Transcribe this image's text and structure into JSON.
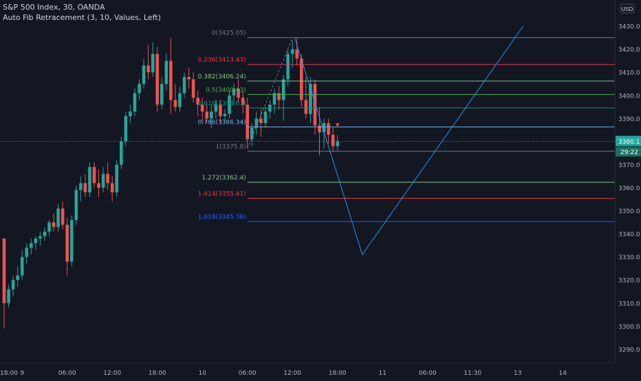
{
  "header": {
    "symbol_line": "S&P 500 Index, 30, OANDA",
    "indicator_line": "Auto Fib Retracement (3, 10, Values, Left)"
  },
  "currency_badge": "USD",
  "chart_data": {
    "type": "candlestick",
    "title": "",
    "y_axis": {
      "position": "right",
      "ylim": [
        3284,
        3436
      ],
      "ticks": [
        3430,
        3420,
        3410,
        3400,
        3390,
        3380,
        3370,
        3360,
        3350,
        3340,
        3330,
        3320,
        3310,
        3300,
        3290
      ],
      "tick_labels": [
        "3430.0",
        "3420.0",
        "3410.0",
        "3400.0",
        "3390.0",
        "",
        "3370.0",
        "3360.0",
        "3350.0",
        "3340.0",
        "3330.0",
        "3320.0",
        "3310.0",
        "3300.0",
        "3290.0"
      ]
    },
    "x_axis": {
      "tick_labels": [
        "18:00",
        "9",
        "06:00",
        "12:00",
        "18:00",
        "10",
        "06:00",
        "12:00",
        "18:00",
        "11",
        "06:00",
        "11:30",
        "13",
        "14"
      ],
      "tick_bar_index": [
        -6,
        4,
        14,
        24,
        34,
        44,
        54,
        64,
        74,
        84,
        94,
        104,
        114,
        124
      ]
    },
    "last_price": {
      "value": 3380.1,
      "label": "3380.1",
      "countdown": "29:22",
      "color": "#26a69a"
    },
    "candles": [
      {
        "o": 3338,
        "h": 3338,
        "l": 3299,
        "c": 3310
      },
      {
        "o": 3310,
        "h": 3318,
        "l": 3308,
        "c": 3316
      },
      {
        "o": 3316,
        "h": 3322,
        "l": 3313,
        "c": 3320
      },
      {
        "o": 3320,
        "h": 3326,
        "l": 3317,
        "c": 3322
      },
      {
        "o": 3322,
        "h": 3333,
        "l": 3320,
        "c": 3330
      },
      {
        "o": 3330,
        "h": 3336,
        "l": 3327,
        "c": 3334
      },
      {
        "o": 3334,
        "h": 3338,
        "l": 3331,
        "c": 3336
      },
      {
        "o": 3336,
        "h": 3339,
        "l": 3333,
        "c": 3338
      },
      {
        "o": 3338,
        "h": 3341,
        "l": 3335,
        "c": 3339
      },
      {
        "o": 3339,
        "h": 3343,
        "l": 3337,
        "c": 3341
      },
      {
        "o": 3341,
        "h": 3346,
        "l": 3339,
        "c": 3345
      },
      {
        "o": 3345,
        "h": 3349,
        "l": 3341,
        "c": 3343
      },
      {
        "o": 3343,
        "h": 3353,
        "l": 3341,
        "c": 3351
      },
      {
        "o": 3351,
        "h": 3354,
        "l": 3342,
        "c": 3344
      },
      {
        "o": 3344,
        "h": 3347,
        "l": 3322,
        "c": 3328
      },
      {
        "o": 3328,
        "h": 3348,
        "l": 3326,
        "c": 3346
      },
      {
        "o": 3346,
        "h": 3361,
        "l": 3344,
        "c": 3359
      },
      {
        "o": 3359,
        "h": 3365,
        "l": 3354,
        "c": 3362
      },
      {
        "o": 3362,
        "h": 3366,
        "l": 3356,
        "c": 3358
      },
      {
        "o": 3358,
        "h": 3371,
        "l": 3356,
        "c": 3369
      },
      {
        "o": 3369,
        "h": 3371,
        "l": 3360,
        "c": 3362
      },
      {
        "o": 3362,
        "h": 3368,
        "l": 3356,
        "c": 3360
      },
      {
        "o": 3360,
        "h": 3369,
        "l": 3358,
        "c": 3366
      },
      {
        "o": 3366,
        "h": 3371,
        "l": 3359,
        "c": 3362
      },
      {
        "o": 3362,
        "h": 3365,
        "l": 3354,
        "c": 3358
      },
      {
        "o": 3358,
        "h": 3372,
        "l": 3356,
        "c": 3370
      },
      {
        "o": 3370,
        "h": 3382,
        "l": 3368,
        "c": 3380
      },
      {
        "o": 3380,
        "h": 3393,
        "l": 3378,
        "c": 3391
      },
      {
        "o": 3391,
        "h": 3396,
        "l": 3388,
        "c": 3393
      },
      {
        "o": 3393,
        "h": 3403,
        "l": 3391,
        "c": 3401
      },
      {
        "o": 3401,
        "h": 3407,
        "l": 3398,
        "c": 3405
      },
      {
        "o": 3405,
        "h": 3416,
        "l": 3403,
        "c": 3413
      },
      {
        "o": 3413,
        "h": 3422,
        "l": 3407,
        "c": 3410
      },
      {
        "o": 3410,
        "h": 3423,
        "l": 3408,
        "c": 3418
      },
      {
        "o": 3418,
        "h": 3421,
        "l": 3393,
        "c": 3396
      },
      {
        "o": 3396,
        "h": 3408,
        "l": 3394,
        "c": 3405
      },
      {
        "o": 3405,
        "h": 3418,
        "l": 3402,
        "c": 3415
      },
      {
        "o": 3415,
        "h": 3425,
        "l": 3392,
        "c": 3398
      },
      {
        "o": 3398,
        "h": 3405,
        "l": 3393,
        "c": 3395
      },
      {
        "o": 3395,
        "h": 3404,
        "l": 3393,
        "c": 3401
      },
      {
        "o": 3401,
        "h": 3410,
        "l": 3399,
        "c": 3408
      },
      {
        "o": 3408,
        "h": 3412,
        "l": 3403,
        "c": 3407
      },
      {
        "o": 3407,
        "h": 3410,
        "l": 3397,
        "c": 3399
      },
      {
        "o": 3399,
        "h": 3402,
        "l": 3391,
        "c": 3396
      },
      {
        "o": 3396,
        "h": 3399,
        "l": 3388,
        "c": 3393
      },
      {
        "o": 3393,
        "h": 3397,
        "l": 3388,
        "c": 3390
      },
      {
        "o": 3390,
        "h": 3396,
        "l": 3386,
        "c": 3393
      },
      {
        "o": 3393,
        "h": 3398,
        "l": 3390,
        "c": 3396
      },
      {
        "o": 3396,
        "h": 3398,
        "l": 3388,
        "c": 3391
      },
      {
        "o": 3391,
        "h": 3394,
        "l": 3388,
        "c": 3392
      },
      {
        "o": 3392,
        "h": 3402,
        "l": 3390,
        "c": 3400
      },
      {
        "o": 3400,
        "h": 3405,
        "l": 3396,
        "c": 3403
      },
      {
        "o": 3403,
        "h": 3407,
        "l": 3397,
        "c": 3399
      },
      {
        "o": 3399,
        "h": 3402,
        "l": 3392,
        "c": 3396
      },
      {
        "o": 3396,
        "h": 3399,
        "l": 3377,
        "c": 3381
      },
      {
        "o": 3381,
        "h": 3388,
        "l": 3378,
        "c": 3386
      },
      {
        "o": 3386,
        "h": 3393,
        "l": 3383,
        "c": 3390
      },
      {
        "o": 3390,
        "h": 3394,
        "l": 3382,
        "c": 3388
      },
      {
        "o": 3388,
        "h": 3395,
        "l": 3386,
        "c": 3393
      },
      {
        "o": 3393,
        "h": 3398,
        "l": 3390,
        "c": 3396
      },
      {
        "o": 3396,
        "h": 3403,
        "l": 3392,
        "c": 3401
      },
      {
        "o": 3401,
        "h": 3404,
        "l": 3394,
        "c": 3398
      },
      {
        "o": 3398,
        "h": 3409,
        "l": 3389,
        "c": 3407
      },
      {
        "o": 3407,
        "h": 3420,
        "l": 3404,
        "c": 3418
      },
      {
        "o": 3418,
        "h": 3424,
        "l": 3412,
        "c": 3420
      },
      {
        "o": 3420,
        "h": 3425,
        "l": 3413,
        "c": 3416
      },
      {
        "o": 3416,
        "h": 3418,
        "l": 3395,
        "c": 3398
      },
      {
        "o": 3398,
        "h": 3408,
        "l": 3390,
        "c": 3392
      },
      {
        "o": 3392,
        "h": 3408,
        "l": 3388,
        "c": 3405
      },
      {
        "o": 3405,
        "h": 3407,
        "l": 3383,
        "c": 3387
      },
      {
        "o": 3387,
        "h": 3395,
        "l": 3374,
        "c": 3384
      },
      {
        "o": 3384,
        "h": 3390,
        "l": 3377,
        "c": 3388
      },
      {
        "o": 3388,
        "h": 3390,
        "l": 3379,
        "c": 3383
      },
      {
        "o": 3383,
        "h": 3386,
        "l": 3376,
        "c": 3378
      },
      {
        "o": 3378,
        "h": 3383,
        "l": 3376,
        "c": 3380.1
      }
    ],
    "fib_levels": [
      {
        "ratio": "0",
        "value": 3425.05,
        "label": "0(3425.05)",
        "color": "#787b86"
      },
      {
        "ratio": "0.236",
        "value": 3413.43,
        "label": "0.236(3413.43)",
        "color": "#f23645"
      },
      {
        "ratio": "0.382",
        "value": 3406.24,
        "label": "0.382(3406.24)",
        "color": "#81c784"
      },
      {
        "ratio": "0.5",
        "value": 3400.43,
        "label": "0.5(3400.43)",
        "color": "#4caf50"
      },
      {
        "ratio": "0.618",
        "value": 3394.61,
        "label": "0.618(3394.61)",
        "color": "#089981"
      },
      {
        "ratio": "0.786",
        "value": 3386.34,
        "label": "0.786(3386.34)",
        "color": "#64b5f6"
      },
      {
        "ratio": "1",
        "value": 3375.8,
        "label": "1(3375.8)",
        "color": "#787b86"
      },
      {
        "ratio": "1.272",
        "value": 3362.4,
        "label": "1.272(3362.4)",
        "color": "#81c784"
      },
      {
        "ratio": "1.414",
        "value": 3355.41,
        "label": "1.414(3355.41)",
        "color": "#f23645"
      },
      {
        "ratio": "1.618",
        "value": 3345.36,
        "label": "1.618(3345.36)",
        "color": "#2962ff"
      }
    ],
    "projection_path": [
      {
        "bar": 64.5,
        "value": 3425
      },
      {
        "bar": 79.5,
        "value": 3331
      },
      {
        "bar": 115.2,
        "value": 3430
      }
    ],
    "colors": {
      "up": "#26a69a",
      "down": "#ef5350",
      "projection": "#2196f3",
      "background": "#131722",
      "axis_text": "#b2b5be"
    }
  }
}
